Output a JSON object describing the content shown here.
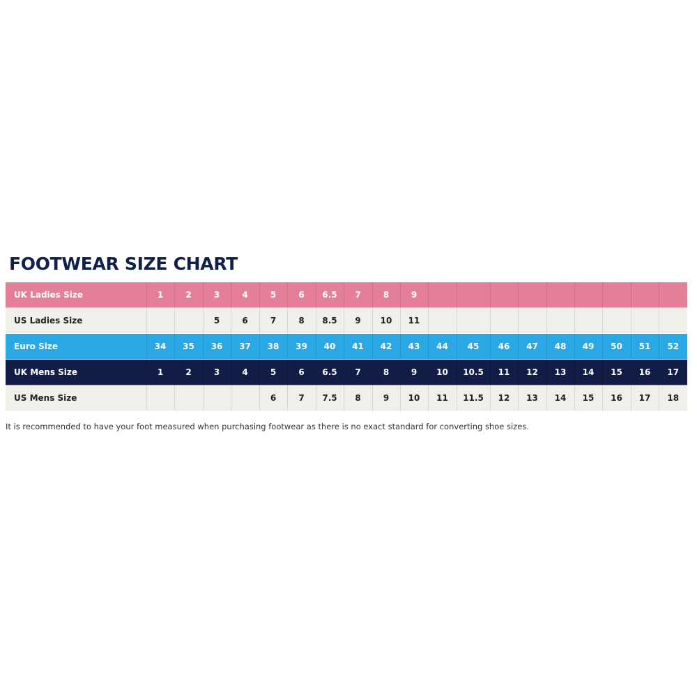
{
  "title": "FOOTWEAR SIZE CHART",
  "rows": [
    {
      "label": "UK Ladies Size",
      "style": "pink",
      "color": "#e57f98",
      "cells": [
        "1",
        "2",
        "3",
        "4",
        "5",
        "6",
        "6.5",
        "7",
        "8",
        "9",
        "",
        "",
        "",
        "",
        "",
        "",
        "",
        "",
        ""
      ]
    },
    {
      "label": "US Ladies Size",
      "style": "light",
      "color": "#f0efe9",
      "cells": [
        "",
        "",
        "5",
        "6",
        "7",
        "8",
        "8.5",
        "9",
        "10",
        "11",
        "",
        "",
        "",
        "",
        "",
        "",
        "",
        "",
        ""
      ]
    },
    {
      "label": "Euro Size",
      "style": "blue",
      "color": "#2aa8e6",
      "cells": [
        "34",
        "35",
        "36",
        "37",
        "38",
        "39",
        "40",
        "41",
        "42",
        "43",
        "44",
        "45",
        "46",
        "47",
        "48",
        "49",
        "50",
        "51",
        "52"
      ]
    },
    {
      "label": "UK Mens Size",
      "style": "navy",
      "color": "#111c47",
      "cells": [
        "1",
        "2",
        "3",
        "4",
        "5",
        "6",
        "6.5",
        "7",
        "8",
        "9",
        "10",
        "10.5",
        "11",
        "12",
        "13",
        "14",
        "15",
        "16",
        "17"
      ]
    },
    {
      "label": "US Mens Size",
      "style": "light",
      "color": "#f0efe9",
      "cells": [
        "",
        "",
        "",
        "",
        "6",
        "7",
        "7.5",
        "8",
        "9",
        "10",
        "11",
        "11.5",
        "12",
        "13",
        "14",
        "15",
        "16",
        "17",
        "18"
      ]
    }
  ],
  "note": "It is recommended to have your foot measured when purchasing footwear as there is no exact standard for converting shoe sizes."
}
